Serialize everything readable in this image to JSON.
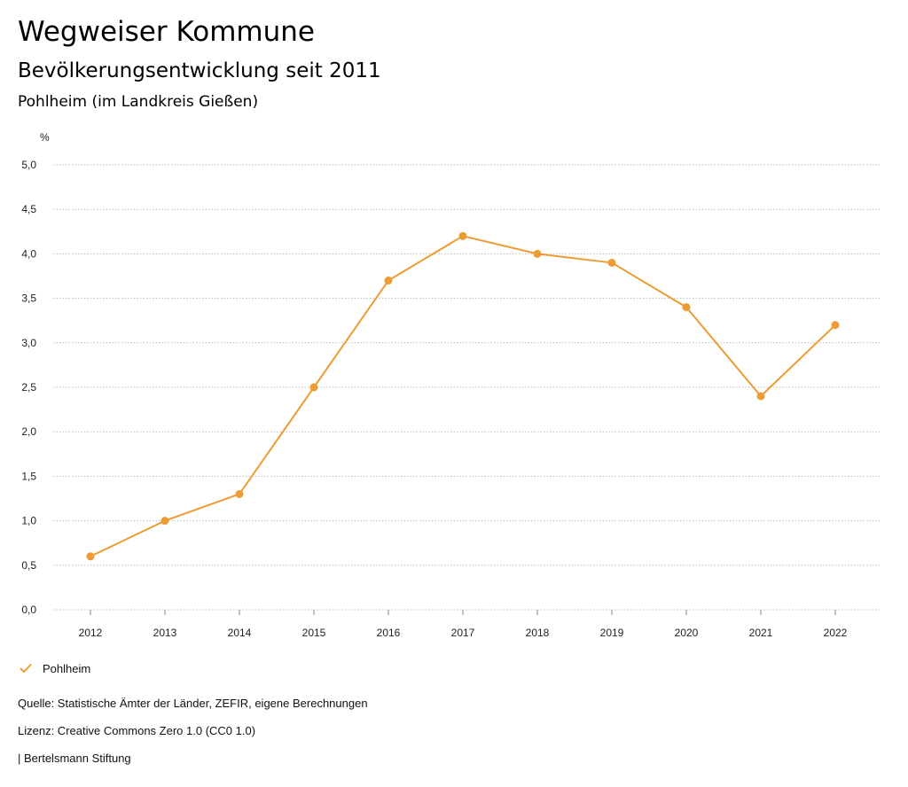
{
  "header": {
    "title": "Wegweiser Kommune",
    "subtitle": "Bevölkerungsentwicklung seit 2011",
    "region": "Pohlheim (im Landkreis Gießen)"
  },
  "chart_data": {
    "type": "line",
    "title": "Bevölkerungsentwicklung seit 2011",
    "subtitle": "Pohlheim (im Landkreis Gießen)",
    "xlabel": "",
    "ylabel": "%",
    "x": [
      "2012",
      "2013",
      "2014",
      "2015",
      "2016",
      "2017",
      "2018",
      "2019",
      "2020",
      "2021",
      "2022"
    ],
    "series": [
      {
        "name": "Pohlheim",
        "values": [
          0.6,
          1.0,
          1.3,
          2.5,
          3.7,
          4.2,
          4.0,
          3.9,
          3.4,
          2.4,
          3.2
        ],
        "color": "#ED9B33"
      }
    ],
    "ylim": [
      0,
      5
    ],
    "yticks": [
      0,
      0.5,
      1,
      1.5,
      2,
      2.5,
      3,
      3.5,
      4,
      4.5,
      5
    ],
    "ytick_labels": [
      "0,0",
      "0,5",
      "1,0",
      "1,5",
      "2,0",
      "2,5",
      "3,0",
      "3,5",
      "4,0",
      "4,5",
      "5,0"
    ],
    "grid": true,
    "legend_position": "bottom-left"
  },
  "legend": {
    "label": "Pohlheim",
    "icon": "check-icon"
  },
  "footer": {
    "source": "Quelle: Statistische Ämter der Länder, ZEFIR, eigene Berechnungen",
    "license": "Lizenz: Creative Commons Zero 1.0 (CC0 1.0)",
    "publisher": "| Bertelsmann Stiftung"
  },
  "colors": {
    "series": "#ED9B33",
    "grid": "#bbbbbb"
  }
}
